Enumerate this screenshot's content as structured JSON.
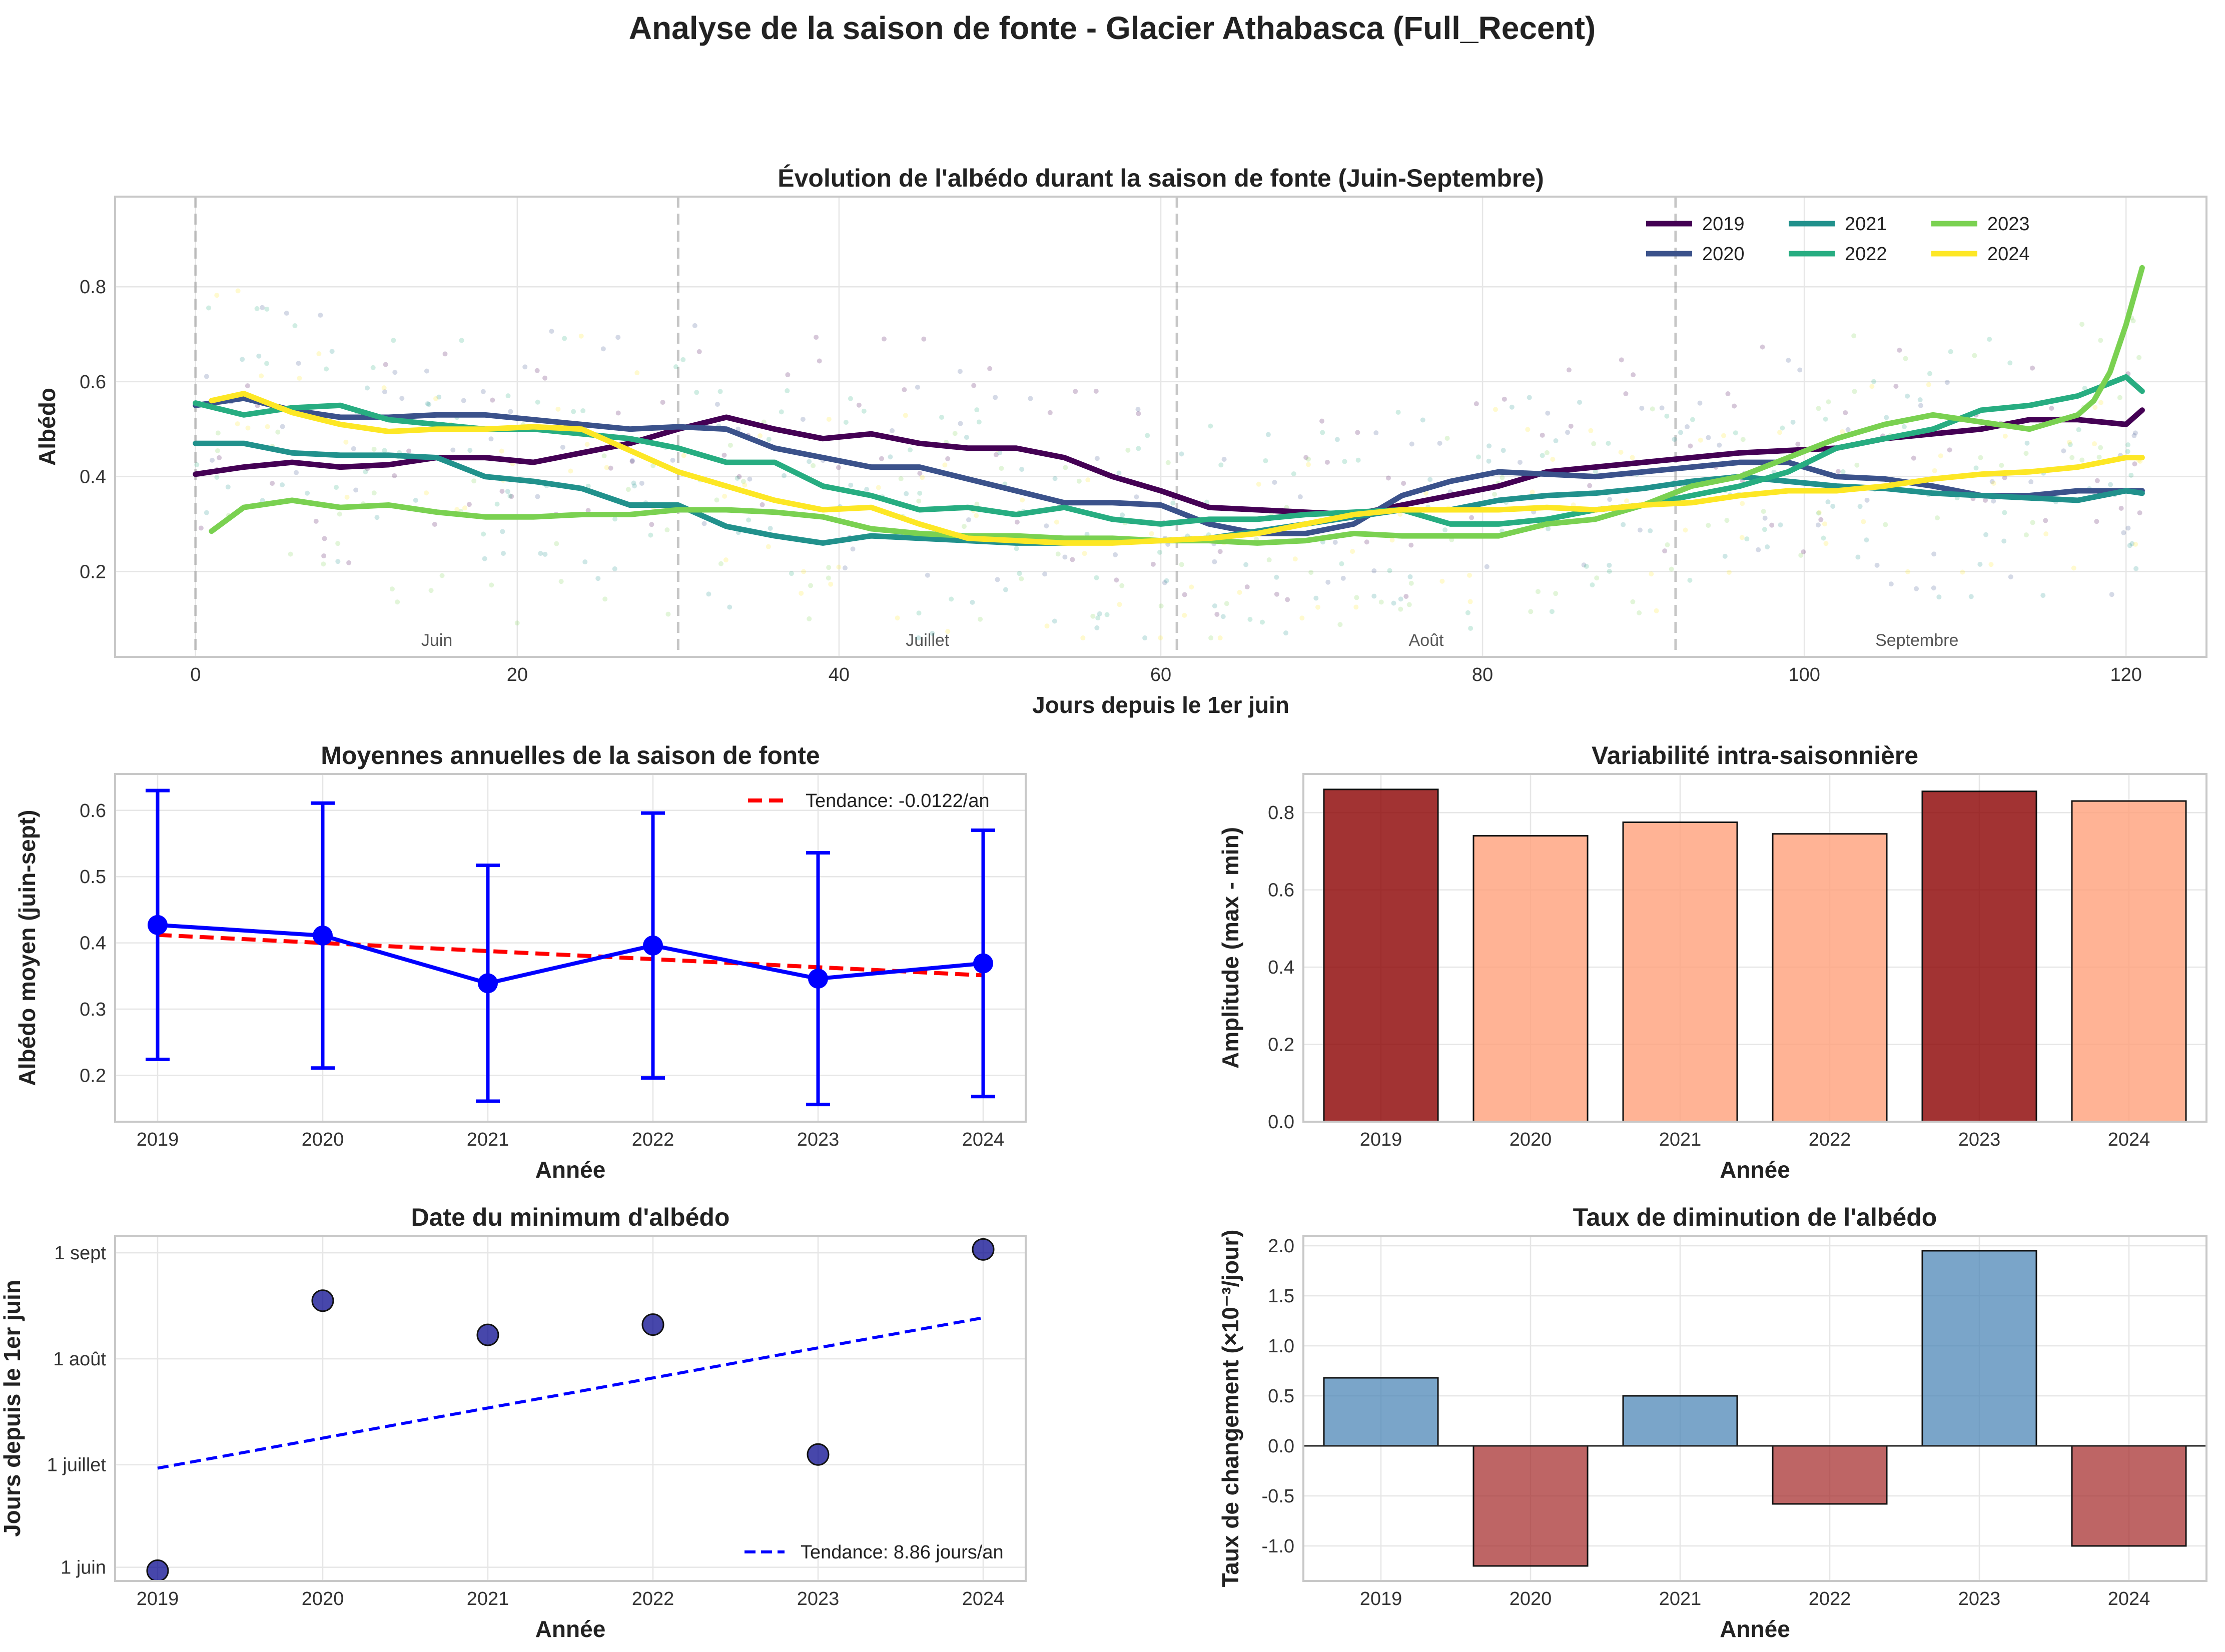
{
  "suptitle": "Analyse de la saison de fonte - Glacier Athabasca (Full_Recent)",
  "colors": {
    "2019": "#440154",
    "2020": "#3b528b",
    "2021": "#21918c",
    "2022": "#27ad81",
    "2023": "#7ad151",
    "2024": "#fde725",
    "dark_red": "#8b0000",
    "light_salmon": "#ffa07a",
    "steelblue": "#4682b4",
    "brown_red": "#a52a2a",
    "blue": "#0000ff",
    "red": "#ff0000",
    "dark_blue": "#00008b"
  },
  "chart_data": [
    {
      "id": "evolution",
      "type": "line",
      "title": "Évolution de l'albédo durant la saison de fonte (Juin-Septembre)",
      "xlabel": "Jours depuis le 1er juin",
      "ylabel": "Albédo",
      "xlim": [
        -5,
        125
      ],
      "ylim": [
        0.02,
        0.99
      ],
      "xticks": [
        0,
        20,
        40,
        60,
        80,
        100,
        120
      ],
      "yticks": [
        0.2,
        0.4,
        0.6,
        0.8
      ],
      "month_boundaries": [
        0,
        30,
        61,
        92
      ],
      "month_labels": [
        {
          "label": "Juin",
          "x": 15
        },
        {
          "label": "Juillet",
          "x": 45.5
        },
        {
          "label": "Août",
          "x": 76.5
        },
        {
          "label": "Septembre",
          "x": 107
        }
      ],
      "legend_position": "top-right",
      "grid": true,
      "series": [
        {
          "name": "2019",
          "x": [
            0,
            3,
            6,
            9,
            12,
            15,
            18,
            21,
            24,
            27,
            30,
            33,
            36,
            39,
            42,
            45,
            48,
            51,
            54,
            57,
            60,
            63,
            66,
            69,
            72,
            75,
            78,
            81,
            84,
            87,
            90,
            93,
            96,
            99,
            102,
            105,
            108,
            111,
            114,
            117,
            120,
            121
          ],
          "values": [
            0.405,
            0.42,
            0.43,
            0.42,
            0.425,
            0.44,
            0.44,
            0.43,
            0.45,
            0.47,
            0.5,
            0.525,
            0.5,
            0.48,
            0.49,
            0.47,
            0.46,
            0.46,
            0.44,
            0.4,
            0.37,
            0.335,
            0.33,
            0.325,
            0.32,
            0.34,
            0.36,
            0.38,
            0.41,
            0.42,
            0.43,
            0.44,
            0.45,
            0.455,
            0.46,
            0.48,
            0.49,
            0.5,
            0.52,
            0.52,
            0.51,
            0.54
          ]
        },
        {
          "name": "2020",
          "x": [
            0,
            3,
            6,
            9,
            12,
            15,
            18,
            21,
            24,
            27,
            30,
            33,
            36,
            39,
            42,
            45,
            48,
            51,
            54,
            57,
            60,
            63,
            66,
            69,
            72,
            75,
            78,
            81,
            84,
            87,
            90,
            93,
            96,
            99,
            102,
            105,
            108,
            111,
            114,
            117,
            120,
            121
          ],
          "values": [
            0.55,
            0.565,
            0.54,
            0.525,
            0.525,
            0.53,
            0.53,
            0.52,
            0.51,
            0.5,
            0.505,
            0.5,
            0.46,
            0.44,
            0.42,
            0.42,
            0.395,
            0.37,
            0.345,
            0.345,
            0.34,
            0.3,
            0.28,
            0.28,
            0.3,
            0.36,
            0.39,
            0.41,
            0.405,
            0.4,
            0.41,
            0.42,
            0.43,
            0.43,
            0.4,
            0.395,
            0.38,
            0.36,
            0.36,
            0.37,
            0.37,
            0.37
          ]
        },
        {
          "name": "2021",
          "x": [
            0,
            3,
            6,
            9,
            12,
            15,
            18,
            21,
            24,
            27,
            30,
            33,
            36,
            39,
            42,
            45,
            48,
            51,
            54,
            57,
            60,
            63,
            66,
            69,
            72,
            75,
            78,
            81,
            84,
            87,
            90,
            93,
            96,
            99,
            102,
            105,
            108,
            111,
            114,
            117,
            120,
            121
          ],
          "values": [
            0.47,
            0.47,
            0.45,
            0.445,
            0.445,
            0.44,
            0.4,
            0.39,
            0.375,
            0.34,
            0.34,
            0.295,
            0.275,
            0.26,
            0.275,
            0.27,
            0.265,
            0.26,
            0.26,
            0.265,
            0.265,
            0.27,
            0.285,
            0.3,
            0.315,
            0.33,
            0.33,
            0.35,
            0.36,
            0.365,
            0.375,
            0.39,
            0.4,
            0.39,
            0.38,
            0.375,
            0.365,
            0.36,
            0.355,
            0.35,
            0.37,
            0.365
          ]
        },
        {
          "name": "2022",
          "x": [
            0,
            3,
            6,
            9,
            12,
            15,
            18,
            21,
            24,
            27,
            30,
            33,
            36,
            39,
            42,
            45,
            48,
            51,
            54,
            57,
            60,
            63,
            66,
            69,
            72,
            75,
            78,
            81,
            84,
            87,
            90,
            93,
            96,
            99,
            102,
            105,
            108,
            111,
            114,
            117,
            120,
            121
          ],
          "values": [
            0.555,
            0.53,
            0.545,
            0.55,
            0.52,
            0.51,
            0.5,
            0.5,
            0.49,
            0.48,
            0.46,
            0.43,
            0.43,
            0.38,
            0.36,
            0.33,
            0.335,
            0.32,
            0.335,
            0.31,
            0.3,
            0.31,
            0.31,
            0.32,
            0.325,
            0.33,
            0.3,
            0.3,
            0.31,
            0.33,
            0.34,
            0.36,
            0.38,
            0.41,
            0.46,
            0.48,
            0.5,
            0.54,
            0.55,
            0.57,
            0.61,
            0.58
          ]
        },
        {
          "name": "2023",
          "x": [
            1,
            3,
            6,
            9,
            12,
            15,
            18,
            21,
            24,
            27,
            30,
            33,
            36,
            39,
            42,
            45,
            48,
            51,
            54,
            57,
            60,
            63,
            66,
            69,
            72,
            75,
            78,
            81,
            84,
            87,
            90,
            93,
            96,
            99,
            102,
            105,
            108,
            111,
            114,
            117,
            118,
            119,
            120,
            121
          ],
          "values": [
            0.285,
            0.335,
            0.35,
            0.335,
            0.34,
            0.325,
            0.315,
            0.315,
            0.32,
            0.32,
            0.33,
            0.33,
            0.325,
            0.315,
            0.29,
            0.28,
            0.275,
            0.275,
            0.27,
            0.27,
            0.265,
            0.265,
            0.26,
            0.265,
            0.28,
            0.275,
            0.275,
            0.275,
            0.3,
            0.31,
            0.34,
            0.38,
            0.4,
            0.44,
            0.48,
            0.51,
            0.53,
            0.515,
            0.5,
            0.53,
            0.56,
            0.62,
            0.72,
            0.84
          ]
        },
        {
          "name": "2024",
          "x": [
            1,
            3,
            6,
            9,
            12,
            15,
            18,
            21,
            24,
            27,
            30,
            33,
            36,
            39,
            42,
            45,
            48,
            51,
            54,
            57,
            60,
            63,
            66,
            69,
            72,
            75,
            78,
            81,
            84,
            87,
            90,
            93,
            96,
            99,
            102,
            105,
            108,
            111,
            114,
            117,
            120,
            121
          ],
          "values": [
            0.56,
            0.575,
            0.535,
            0.51,
            0.495,
            0.5,
            0.5,
            0.505,
            0.5,
            0.455,
            0.41,
            0.38,
            0.35,
            0.33,
            0.335,
            0.3,
            0.27,
            0.265,
            0.26,
            0.26,
            0.265,
            0.27,
            0.28,
            0.3,
            0.32,
            0.33,
            0.33,
            0.33,
            0.335,
            0.33,
            0.34,
            0.345,
            0.36,
            0.37,
            0.37,
            0.38,
            0.395,
            0.405,
            0.41,
            0.42,
            0.44,
            0.44
          ]
        }
      ]
    },
    {
      "id": "means",
      "type": "line",
      "title": "Moyennes annuelles de la saison de fonte",
      "xlabel": "Année",
      "ylabel": "Albédo moyen (juin-sept)",
      "categories": [
        "2019",
        "2020",
        "2021",
        "2022",
        "2023",
        "2024"
      ],
      "values": [
        0.427,
        0.411,
        0.339,
        0.396,
        0.346,
        0.369
      ],
      "error": [
        0.203,
        0.2,
        0.178,
        0.2,
        0.19,
        0.201
      ],
      "trend": {
        "label": "Tendance: -0.0122/an",
        "start": 0.412,
        "end": 0.351
      },
      "ylim": [
        0.13,
        0.655
      ],
      "yticks": [
        0.2,
        0.3,
        0.4,
        0.5,
        0.6
      ],
      "legend_position": "top-right",
      "grid": true
    },
    {
      "id": "variability",
      "type": "bar",
      "title": "Variabilité intra-saisonnière",
      "xlabel": "Année",
      "ylabel": "Amplitude (max - min)",
      "categories": [
        "2019",
        "2020",
        "2021",
        "2022",
        "2023",
        "2024"
      ],
      "values": [
        0.86,
        0.74,
        0.775,
        0.745,
        0.855,
        0.83
      ],
      "highlight": [
        true,
        false,
        false,
        false,
        true,
        false
      ],
      "ylim": [
        0,
        0.9
      ],
      "yticks": [
        0.0,
        0.2,
        0.4,
        0.6,
        0.8
      ],
      "grid": true
    },
    {
      "id": "minimum",
      "type": "scatter",
      "title": "Date du minimum d'albédo",
      "xlabel": "Année",
      "ylabel": "Jours depuis le 1er juin",
      "categories": [
        "2019",
        "2020",
        "2021",
        "2022",
        "2023",
        "2024"
      ],
      "values": [
        -1,
        78,
        68,
        71,
        33,
        93
      ],
      "trend": {
        "label": "Tendance: 8.86 jours/an",
        "start": 29,
        "end": 73
      },
      "ylim": [
        -4,
        97
      ],
      "ytick_values": [
        0,
        30,
        61,
        92
      ],
      "ytick_labels": [
        "1 juin",
        "1 juillet",
        "1 août",
        "1 sept"
      ],
      "legend_position": "bottom-right",
      "grid": true
    },
    {
      "id": "rate",
      "type": "bar",
      "title": "Taux de diminution de l'albédo",
      "xlabel": "Année",
      "ylabel": "Taux de changement (×10⁻³/jour)",
      "categories": [
        "2019",
        "2020",
        "2021",
        "2022",
        "2023",
        "2024"
      ],
      "values": [
        0.68,
        -1.2,
        0.5,
        -0.58,
        1.95,
        -1.0
      ],
      "ylim": [
        -1.35,
        2.1
      ],
      "yticks": [
        -1.0,
        -0.5,
        0.0,
        0.5,
        1.0,
        1.5,
        2.0
      ],
      "grid": true
    }
  ]
}
